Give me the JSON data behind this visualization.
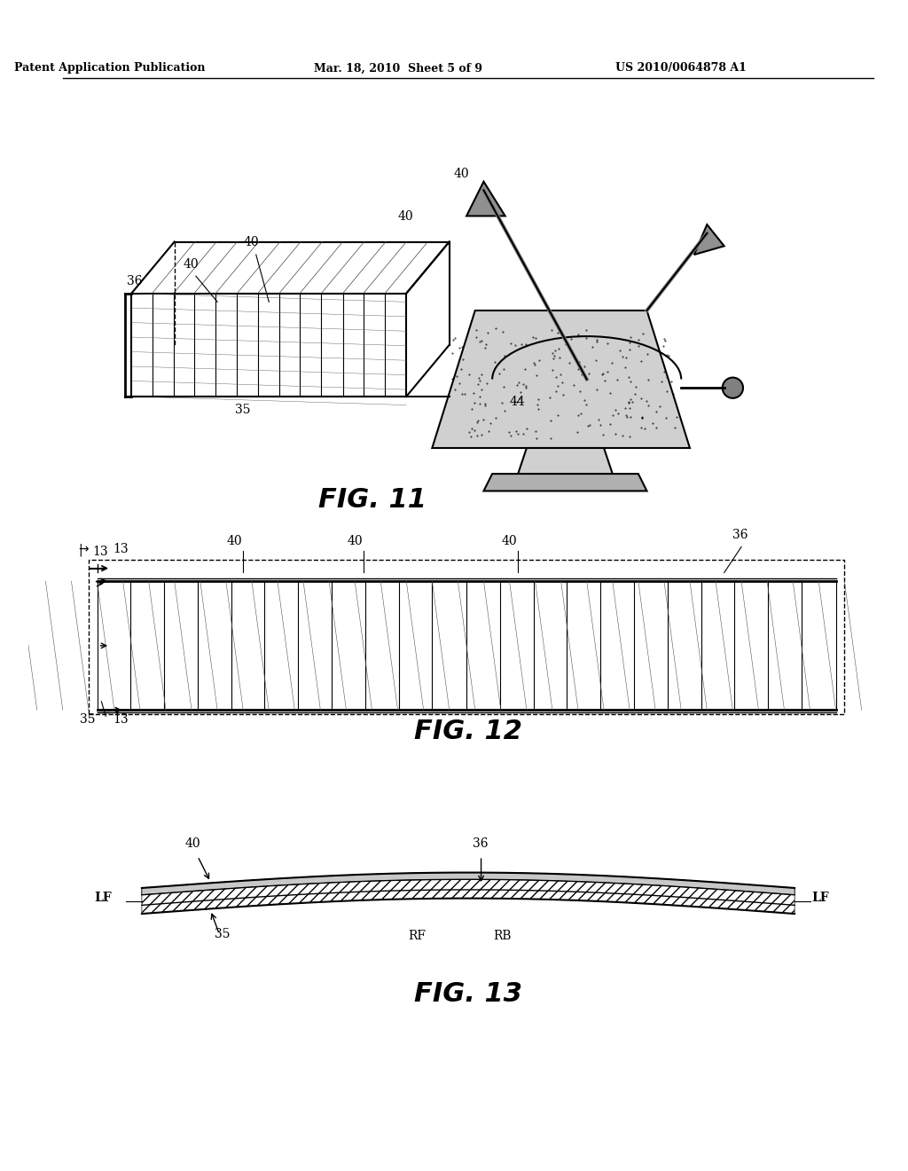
{
  "background_color": "#ffffff",
  "header_left": "Patent Application Publication",
  "header_center": "Mar. 18, 2010  Sheet 5 of 9",
  "header_right": "US 2010/0064878 A1",
  "fig11_label": "FIG. 11",
  "fig12_label": "FIG. 12",
  "fig13_label": "FIG. 13",
  "text_color": "#000000",
  "line_color": "#000000"
}
